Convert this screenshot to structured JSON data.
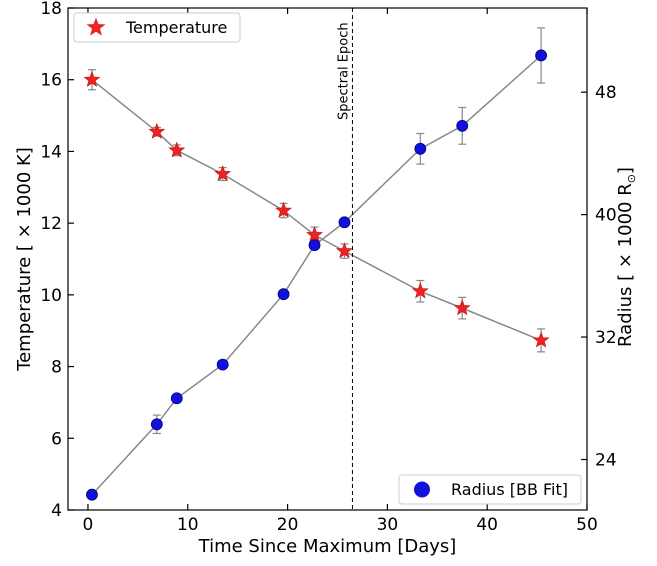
{
  "chart_data": {
    "type": "scatter",
    "xlabel": "Time Since Maximum [Days]",
    "ylabel_left": "Temperature [ × 1000 K]",
    "ylabel_right": "Radius [ × 1000 R",
    "ylabel_right_symbol": "⊙",
    "ylabel_right_close": "]",
    "xlim": [
      -2,
      50
    ],
    "ylim_left": [
      4,
      18
    ],
    "ylim_right": [
      20.7,
      53.5
    ],
    "x_ticks": [
      0,
      10,
      20,
      30,
      40,
      50
    ],
    "y_ticks_left": [
      4,
      6,
      8,
      10,
      12,
      14,
      16,
      18
    ],
    "y_ticks_right": [
      24,
      32,
      40,
      48
    ],
    "grid": false,
    "annotation": {
      "x": 26.5,
      "label": "Spectral Epoch"
    },
    "series": [
      {
        "name": "Temperature",
        "axis": "left",
        "marker": "star",
        "color": "#ee2222",
        "legend_position": "top-left",
        "x": [
          0.4,
          6.9,
          8.9,
          13.5,
          19.6,
          22.7,
          25.7,
          33.3,
          37.5,
          45.4
        ],
        "y": [
          16.0,
          14.55,
          14.03,
          13.37,
          12.35,
          11.67,
          11.22,
          10.1,
          9.63,
          8.73
        ],
        "err": [
          0.28,
          0.12,
          0.15,
          0.18,
          0.2,
          0.22,
          0.2,
          0.3,
          0.3,
          0.32
        ]
      },
      {
        "name": "Radius [BB Fit]",
        "axis": "right",
        "marker": "circle",
        "color": "#1111dd",
        "legend_position": "bottom-right",
        "x": [
          0.4,
          6.9,
          8.9,
          13.5,
          19.6,
          22.7,
          25.7,
          33.3,
          37.5,
          45.4
        ],
        "y": [
          21.7,
          26.3,
          28.0,
          30.2,
          34.8,
          38.0,
          39.5,
          44.3,
          45.8,
          50.4
        ],
        "err": [
          0.0,
          0.6,
          0.0,
          0.0,
          0.0,
          0.0,
          0.0,
          1.0,
          1.2,
          1.8
        ]
      }
    ],
    "line_color": "#888888"
  }
}
